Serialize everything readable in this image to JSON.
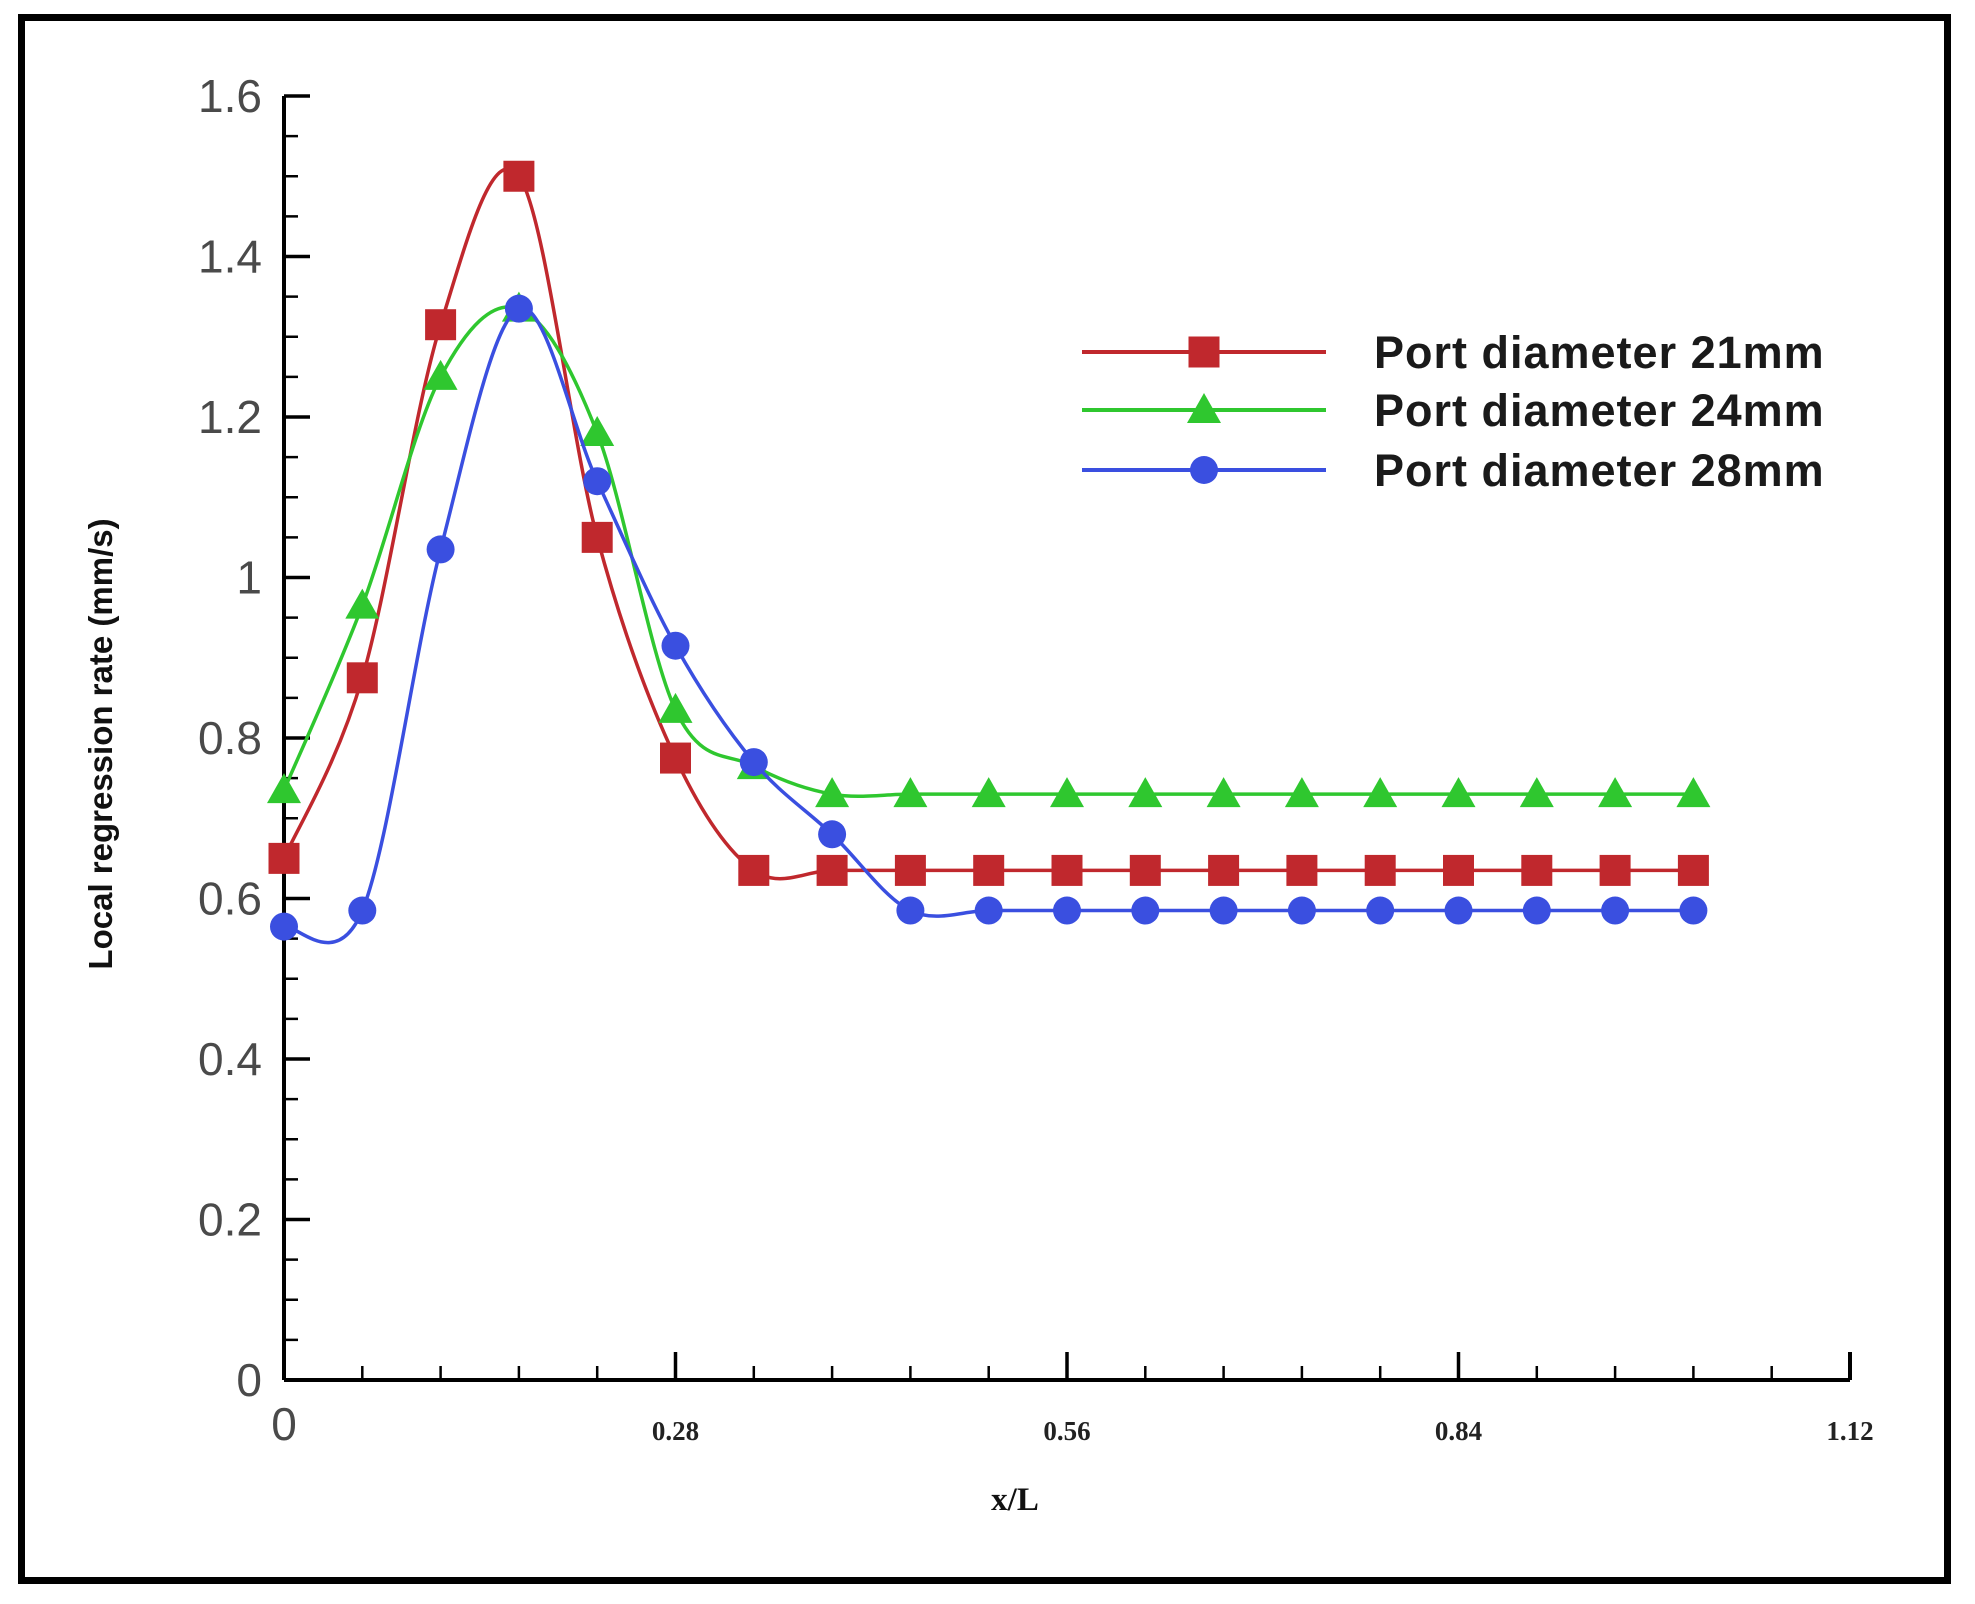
{
  "chart_data": {
    "type": "line",
    "xlabel": "x/L",
    "ylabel": "Local regression rate (mm/s)",
    "xlim": [
      0,
      1.12
    ],
    "ylim": [
      0,
      1.6
    ],
    "x_ticks": [
      0.28,
      0.56,
      0.84,
      1.12
    ],
    "x_tick_labels": [
      "0.28",
      "0.56",
      "0.84",
      "1.12"
    ],
    "x_origin_label": "0",
    "y_ticks": [
      0,
      0.2,
      0.4,
      0.6,
      0.8,
      1,
      1.2,
      1.4,
      1.6
    ],
    "y_tick_labels": [
      "0",
      "0.2",
      "0.4",
      "0.6",
      "0.8",
      "1",
      "1.2",
      "1.4",
      "1.6"
    ],
    "grid": false,
    "legend_position": "top-right",
    "x": [
      0,
      0.056,
      0.112,
      0.168,
      0.224,
      0.28,
      0.336,
      0.392,
      0.448,
      0.504,
      0.56,
      0.616,
      0.672,
      0.728,
      0.784,
      0.84,
      0.896,
      0.952,
      1.008
    ],
    "series": [
      {
        "name": "Port diameter 21mm",
        "color": "#c0282d",
        "marker": "square",
        "values": [
          0.65,
          0.875,
          1.315,
          1.5,
          1.05,
          0.775,
          0.635,
          0.635,
          0.635,
          0.635,
          0.635,
          0.635,
          0.635,
          0.635,
          0.635,
          0.635,
          0.635,
          0.635,
          0.635
        ]
      },
      {
        "name": "Port diameter 24mm",
        "color": "#2fc72f",
        "marker": "triangle",
        "values": [
          0.735,
          0.965,
          1.25,
          1.335,
          1.18,
          0.835,
          0.765,
          0.73,
          0.73,
          0.73,
          0.73,
          0.73,
          0.73,
          0.73,
          0.73,
          0.73,
          0.73,
          0.73,
          0.73
        ]
      },
      {
        "name": "Port diameter 28mm",
        "color": "#3a4fe0",
        "marker": "circle",
        "values": [
          0.565,
          0.585,
          1.035,
          1.335,
          1.12,
          0.915,
          0.77,
          0.68,
          0.585,
          0.585,
          0.585,
          0.585,
          0.585,
          0.585,
          0.585,
          0.585,
          0.585,
          0.585,
          0.585
        ]
      }
    ]
  }
}
